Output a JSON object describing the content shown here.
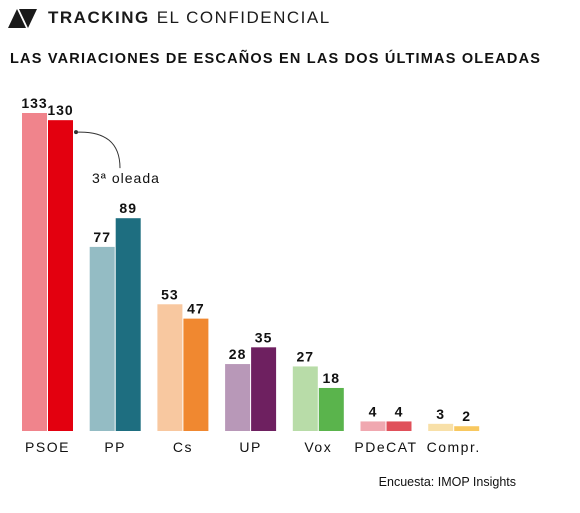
{
  "header": {
    "brand_bold": "TRACKING",
    "brand_light": "EL CONFIDENCIAL",
    "logo_icon": "arrow-logo-icon"
  },
  "chart_data": {
    "type": "bar",
    "title": "LAS VARIACIONES DE ESCAÑOS EN LAS DOS ÚLTIMAS OLEADAS",
    "categories": [
      "PSOE",
      "PP",
      "Cs",
      "UP",
      "Vox",
      "PDeCAT",
      "Compr."
    ],
    "series": [
      {
        "values": [
          133,
          77,
          53,
          28,
          27,
          4,
          3
        ],
        "colors": [
          "#f0848c",
          "#94bcc4",
          "#f8c8a0",
          "#b898b8",
          "#b8dca8",
          "#f0a8b0",
          "#f8e0a8"
        ]
      },
      {
        "values": [
          130,
          89,
          47,
          35,
          18,
          4,
          2
        ],
        "colors": [
          "#e3000f",
          "#1e6e80",
          "#f08830",
          "#6e2060",
          "#5ab44c",
          "#e0505a",
          "#f8c860"
        ]
      }
    ],
    "annotation": "3ª oleada",
    "ylim": [
      0,
      133
    ],
    "grid": false
  },
  "footer": {
    "source": "Encuesta: IMOP Insights"
  }
}
